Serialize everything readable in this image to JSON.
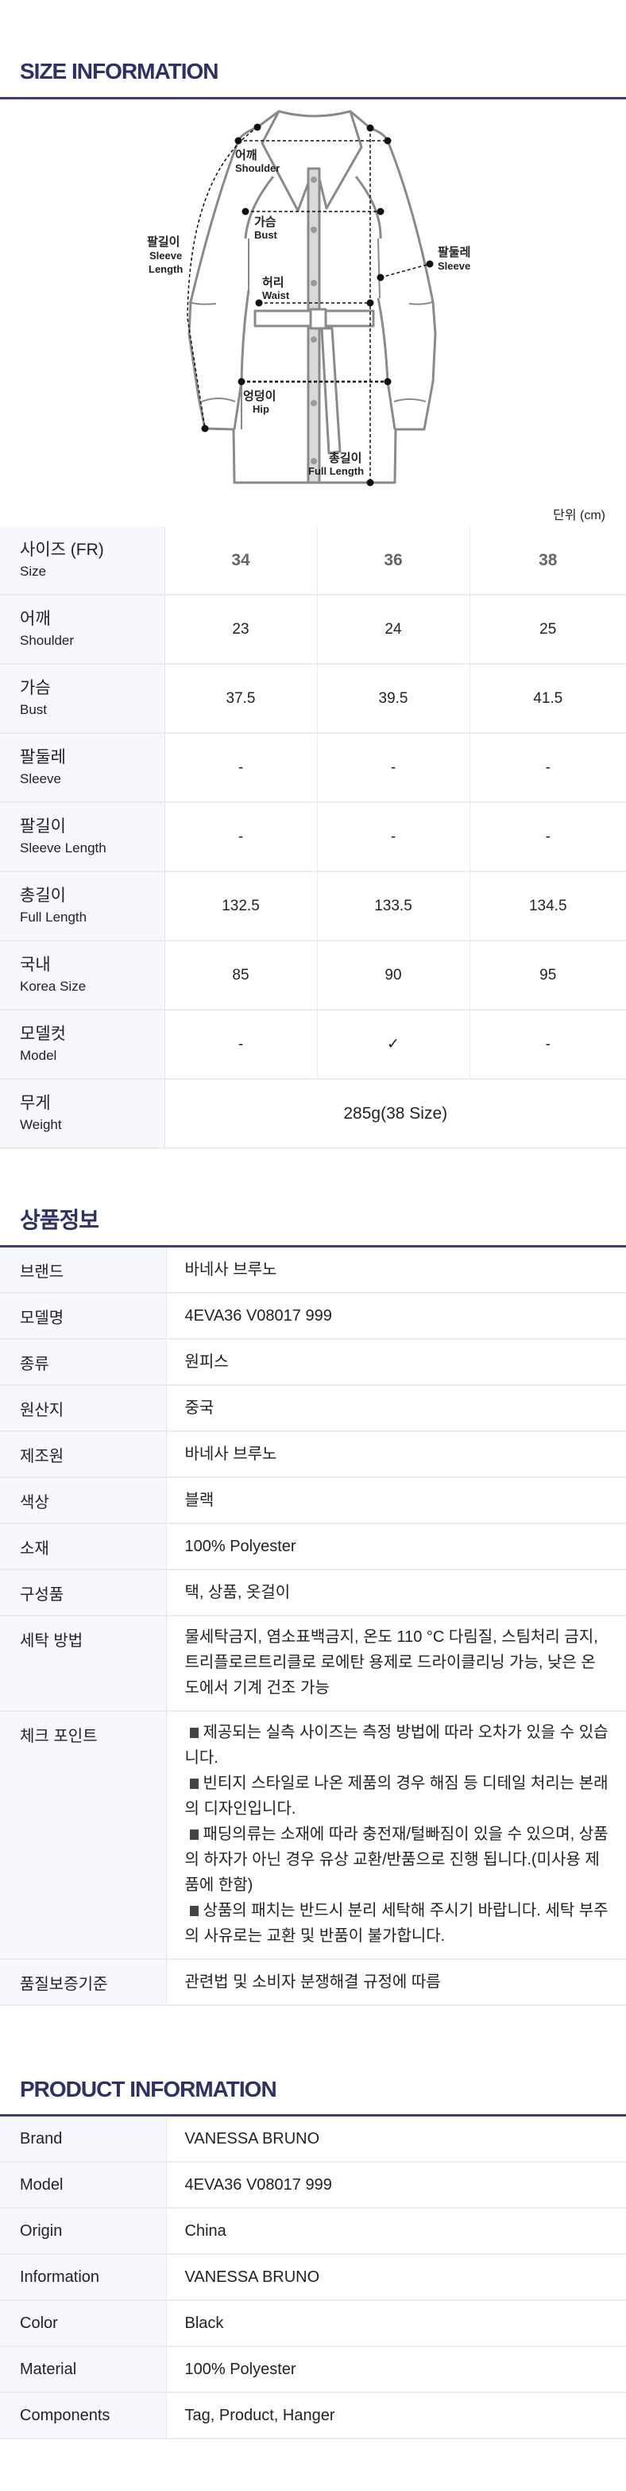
{
  "size_info": {
    "title": "SIZE INFORMATION",
    "diagram_labels": {
      "shoulder_ko": "어깨",
      "shoulder_en": "Shoulder",
      "bust_ko": "가슴",
      "bust_en": "Bust",
      "waist_ko": "허리",
      "waist_en": "Waist",
      "hip_ko": "엉덩이",
      "hip_en": "Hip",
      "full_length_ko": "총길이",
      "full_length_en": "Full Length",
      "sleeve_length_ko": "팔길이",
      "sleeve_length_en1": "Sleeve",
      "sleeve_length_en2": "Length",
      "sleeve_ko": "팔둘레",
      "sleeve_en": "Sleeve"
    },
    "unit": "단위 (cm)",
    "header": {
      "ko": "사이즈 (FR)",
      "en": "Size",
      "sizes": [
        "34",
        "36",
        "38"
      ]
    },
    "rows": [
      {
        "ko": "어깨",
        "en": "Shoulder",
        "values": [
          "23",
          "24",
          "25"
        ]
      },
      {
        "ko": "가슴",
        "en": "Bust",
        "values": [
          "37.5",
          "39.5",
          "41.5"
        ]
      },
      {
        "ko": "팔둘레",
        "en": "Sleeve",
        "values": [
          "-",
          "-",
          "-"
        ]
      },
      {
        "ko": "팔길이",
        "en": "Sleeve Length",
        "values": [
          "-",
          "-",
          "-"
        ]
      },
      {
        "ko": "총길이",
        "en": "Full Length",
        "values": [
          "132.5",
          "133.5",
          "134.5"
        ]
      },
      {
        "ko": "국내",
        "en": "Korea Size",
        "values": [
          "85",
          "90",
          "95"
        ]
      },
      {
        "ko": "모델컷",
        "en": "Model",
        "values": [
          "-",
          "✓",
          "-"
        ]
      }
    ],
    "weight": {
      "ko": "무게",
      "en": "Weight",
      "value": "285g(38 Size)"
    }
  },
  "product_info_ko": {
    "title": "상품정보",
    "rows": [
      {
        "label": "브랜드",
        "value": "바네사 브루노"
      },
      {
        "label": "모델명",
        "value": "4EVA36 V08017 999"
      },
      {
        "label": "종류",
        "value": "원피스"
      },
      {
        "label": "원산지",
        "value": "중국"
      },
      {
        "label": "제조원",
        "value": "바네사 브루노"
      },
      {
        "label": "색상",
        "value": "블랙"
      },
      {
        "label": "소재",
        "value": "100% Polyester"
      },
      {
        "label": "구성품",
        "value": "택, 상품, 옷걸이"
      },
      {
        "label": "세탁 방법",
        "value": "물세탁금지, 염소표백금지, 온도 110 °C 다림질, 스팀처리 금지, 트리플로르트리클로 로에탄 용제로 드라이클리닝 가능, 낮은 온도에서 기계 건조 가능"
      }
    ],
    "check_point": {
      "label": "체크 포인트",
      "items": [
        "제공되는 실측 사이즈는 측정 방법에 따라 오차가 있을 수 있습니다.",
        "빈티지 스타일로 나온 제품의 경우 해짐 등 디테일 처리는 본래의 디자인입니다.",
        "패딩의류는 소재에 따라 충전재/털빠짐이 있을 수 있으며, 상품의 하자가 아닌 경우 유상 교환/반품으로 진행 됩니다.(미사용 제품에 한함)",
        "상품의 패치는 반드시 분리 세탁해 주시기 바랍니다. 세탁 부주의 사유로는 교환 및 반품이 불가합니다."
      ]
    },
    "quality": {
      "label": "품질보증기준",
      "value": "관련법 및 소비자 분쟁해결 규정에 따름"
    }
  },
  "product_info_en": {
    "title": "PRODUCT INFORMATION",
    "rows": [
      {
        "label": "Brand",
        "value": "VANESSA BRUNO"
      },
      {
        "label": "Model",
        "value": "4EVA36 V08017 999"
      },
      {
        "label": "Origin",
        "value": "China"
      },
      {
        "label": "Information",
        "value": "VANESSA BRUNO"
      },
      {
        "label": "Color",
        "value": "Black"
      },
      {
        "label": "Material",
        "value": "100% Polyester"
      },
      {
        "label": "Components",
        "value": "Tag, Product, Hanger"
      }
    ]
  },
  "colors": {
    "accent": "#2e3066",
    "label_bg": "#f6f8fd",
    "border": "#ececec",
    "diagram_stroke": "#8a8a8a"
  }
}
